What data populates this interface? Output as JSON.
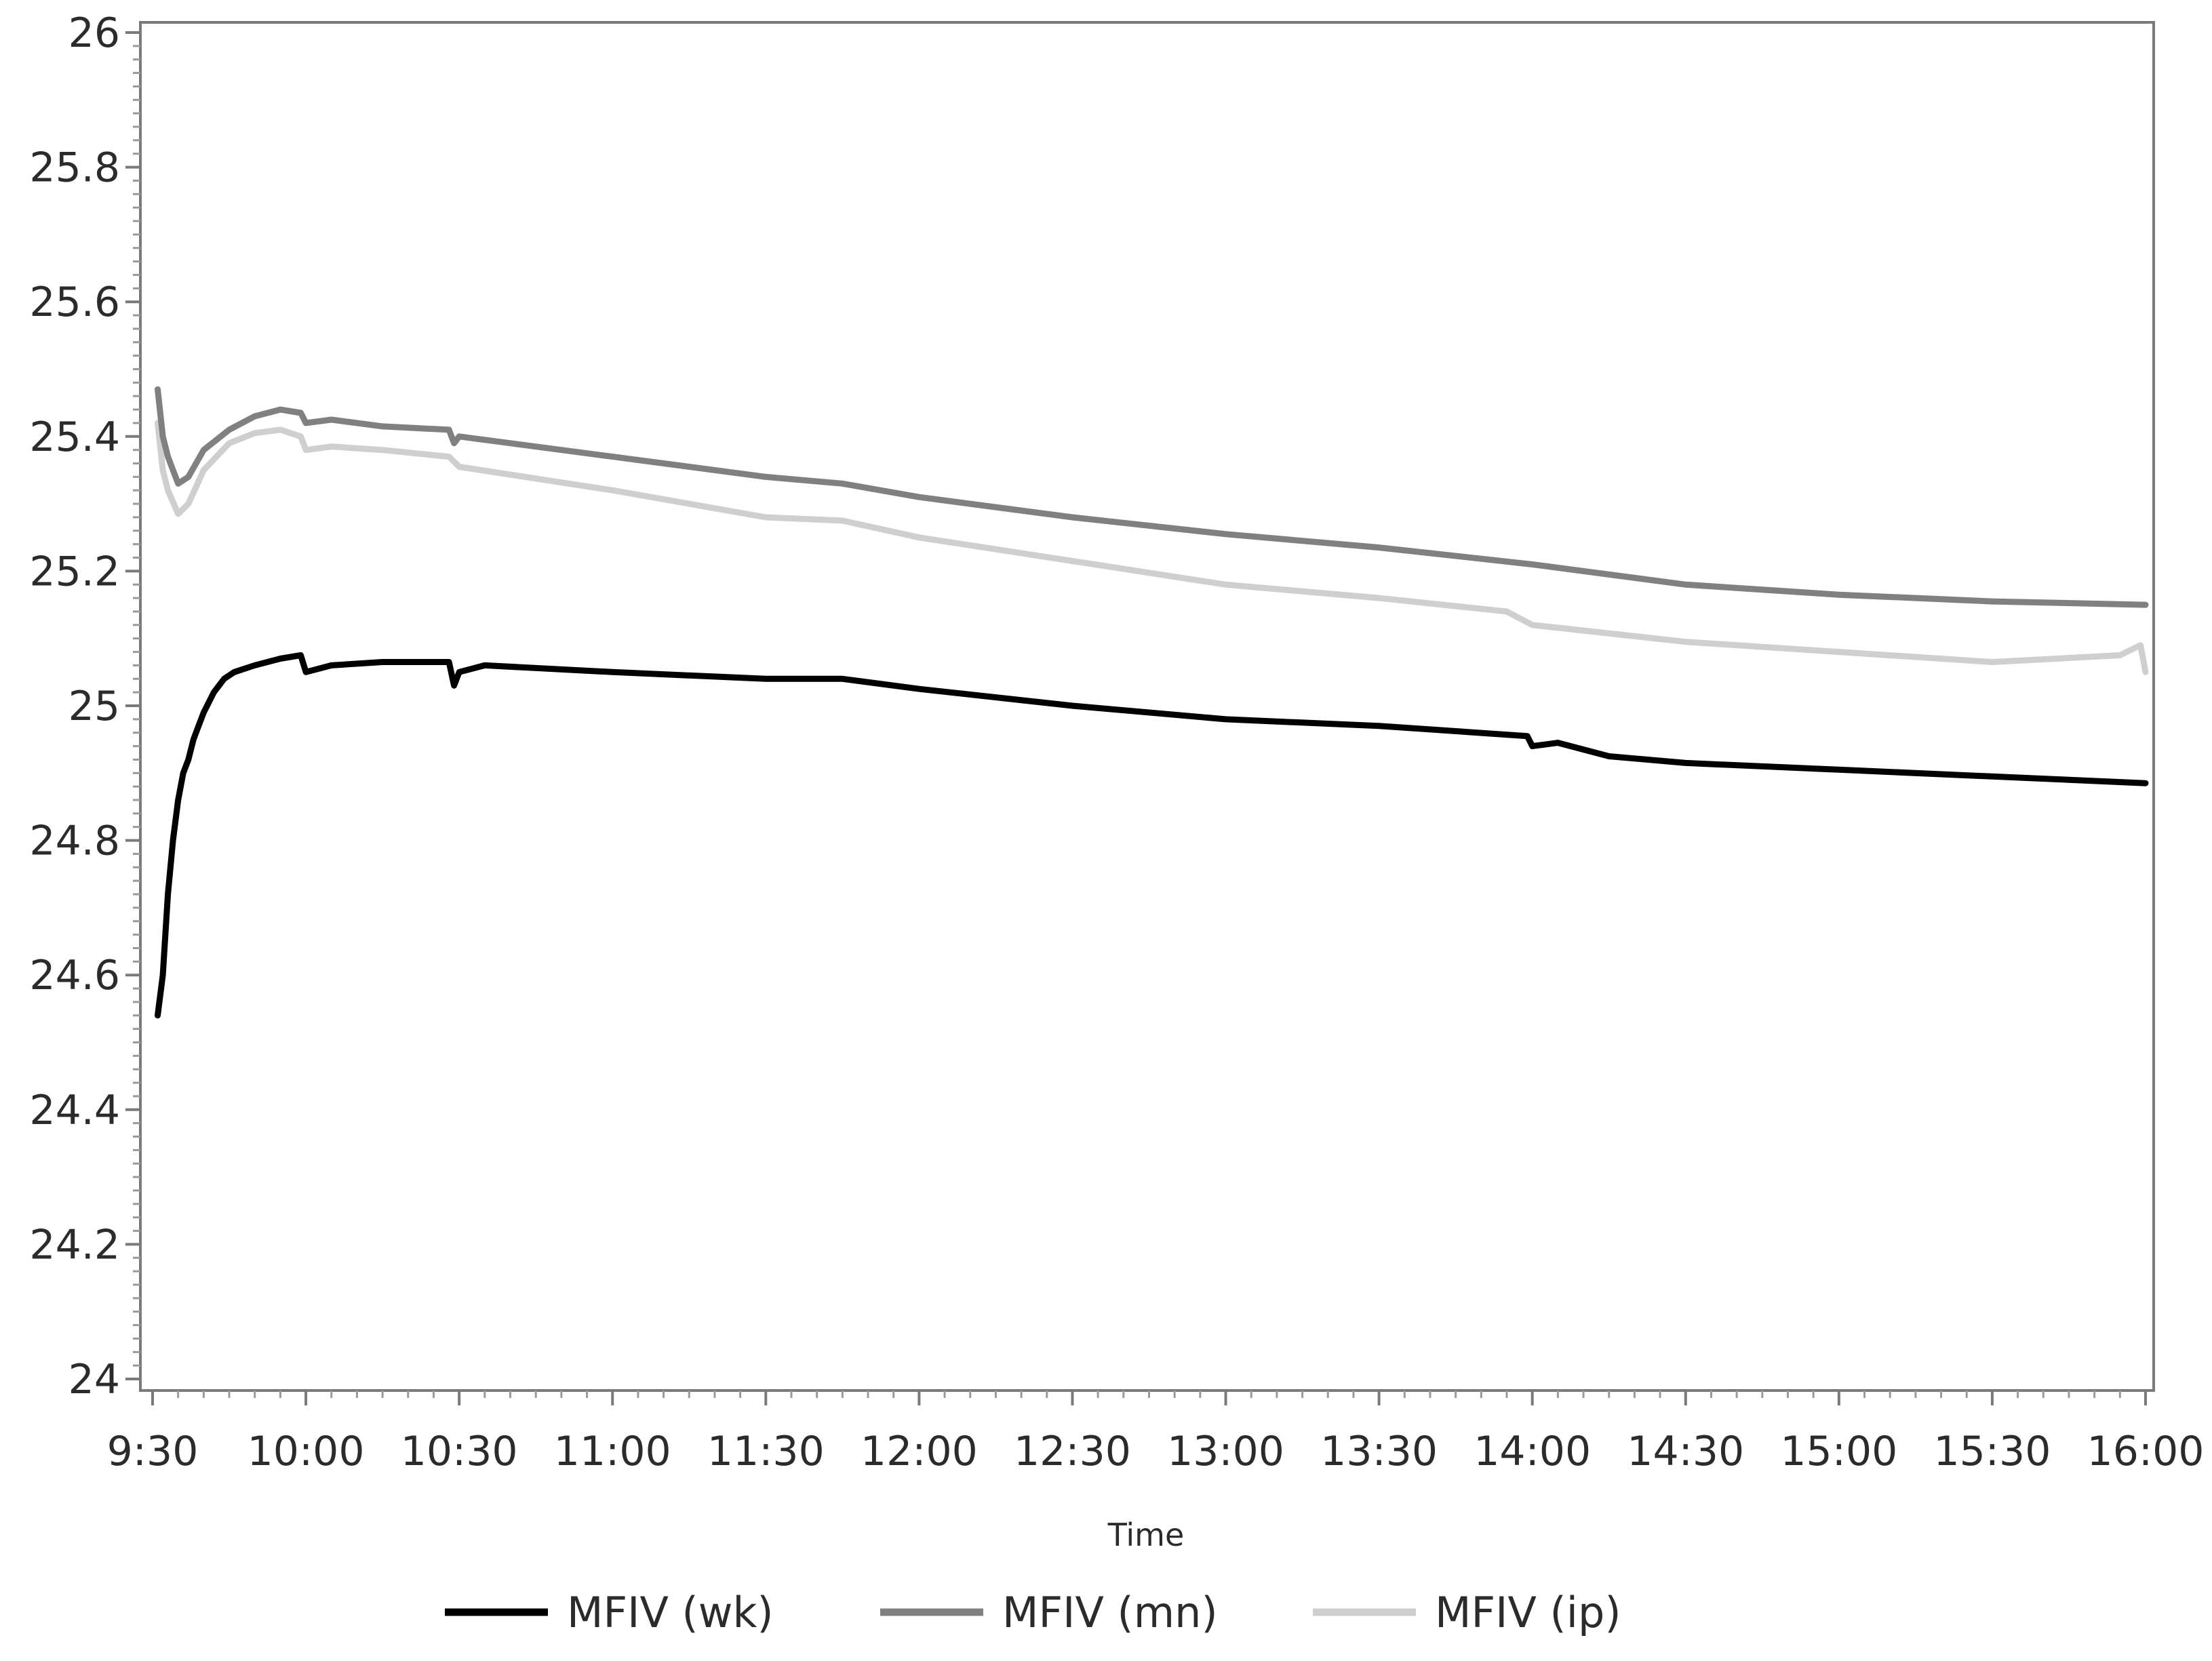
{
  "chart_data": {
    "type": "line",
    "title": "",
    "xlabel": "Time",
    "ylabel": "",
    "x_range_minutes": [
      570,
      960
    ],
    "xticks": [
      "9:30",
      "10:00",
      "10:30",
      "11:00",
      "11:30",
      "12:00",
      "12:30",
      "13:00",
      "13:30",
      "14:00",
      "14:30",
      "15:00",
      "15:30",
      "16:00"
    ],
    "ylim": [
      24,
      26
    ],
    "yticks": [
      "26",
      "25.8",
      "25.6",
      "25.4",
      "25.2",
      "25",
      "24.8",
      "24.6",
      "24.4",
      "24.2",
      "24"
    ],
    "grid": false,
    "legend_position": "bottom",
    "series": [
      {
        "name": "MFIV (wk)",
        "color": "#000000",
        "points": [
          [
            "9:31",
            24.54
          ],
          [
            "9:32",
            24.6
          ],
          [
            "9:33",
            24.72
          ],
          [
            "9:34",
            24.8
          ],
          [
            "9:35",
            24.86
          ],
          [
            "9:36",
            24.9
          ],
          [
            "9:37",
            24.92
          ],
          [
            "9:38",
            24.95
          ],
          [
            "9:39",
            24.97
          ],
          [
            "9:40",
            24.99
          ],
          [
            "9:42",
            25.02
          ],
          [
            "9:44",
            25.04
          ],
          [
            "9:46",
            25.05
          ],
          [
            "9:50",
            25.06
          ],
          [
            "9:55",
            25.07
          ],
          [
            "9:59",
            25.075
          ],
          [
            "10:00",
            25.05
          ],
          [
            "10:05",
            25.06
          ],
          [
            "10:15",
            25.065
          ],
          [
            "10:28",
            25.065
          ],
          [
            "10:29",
            25.03
          ],
          [
            "10:30",
            25.05
          ],
          [
            "10:35",
            25.06
          ],
          [
            "11:00",
            25.05
          ],
          [
            "11:30",
            25.04
          ],
          [
            "11:45",
            25.04
          ],
          [
            "12:00",
            25.025
          ],
          [
            "12:30",
            25.0
          ],
          [
            "13:00",
            24.98
          ],
          [
            "13:30",
            24.97
          ],
          [
            "13:59",
            24.955
          ],
          [
            "14:00",
            24.94
          ],
          [
            "14:05",
            24.945
          ],
          [
            "14:15",
            24.925
          ],
          [
            "14:30",
            24.915
          ],
          [
            "15:00",
            24.905
          ],
          [
            "15:30",
            24.895
          ],
          [
            "16:00",
            24.885
          ]
        ]
      },
      {
        "name": "MFIV (mn)",
        "color": "#808080",
        "points": [
          [
            "9:31",
            25.47
          ],
          [
            "9:32",
            25.4
          ],
          [
            "9:33",
            25.37
          ],
          [
            "9:35",
            25.33
          ],
          [
            "9:37",
            25.34
          ],
          [
            "9:40",
            25.38
          ],
          [
            "9:45",
            25.41
          ],
          [
            "9:50",
            25.43
          ],
          [
            "9:55",
            25.44
          ],
          [
            "9:59",
            25.435
          ],
          [
            "10:00",
            25.42
          ],
          [
            "10:05",
            25.425
          ],
          [
            "10:15",
            25.415
          ],
          [
            "10:28",
            25.41
          ],
          [
            "10:29",
            25.39
          ],
          [
            "10:30",
            25.4
          ],
          [
            "11:00",
            25.37
          ],
          [
            "11:30",
            25.34
          ],
          [
            "11:45",
            25.33
          ],
          [
            "12:00",
            25.31
          ],
          [
            "12:30",
            25.28
          ],
          [
            "13:00",
            25.255
          ],
          [
            "13:30",
            25.235
          ],
          [
            "14:00",
            25.21
          ],
          [
            "14:30",
            25.18
          ],
          [
            "15:00",
            25.165
          ],
          [
            "15:30",
            25.155
          ],
          [
            "16:00",
            25.15
          ]
        ]
      },
      {
        "name": "MFIV (ip)",
        "color": "#cfcfcf",
        "points": [
          [
            "9:31",
            25.42
          ],
          [
            "9:32",
            25.35
          ],
          [
            "9:33",
            25.32
          ],
          [
            "9:35",
            25.285
          ],
          [
            "9:37",
            25.3
          ],
          [
            "9:40",
            25.35
          ],
          [
            "9:45",
            25.39
          ],
          [
            "9:50",
            25.405
          ],
          [
            "9:55",
            25.41
          ],
          [
            "9:59",
            25.4
          ],
          [
            "10:00",
            25.38
          ],
          [
            "10:05",
            25.385
          ],
          [
            "10:15",
            25.38
          ],
          [
            "10:28",
            25.37
          ],
          [
            "10:30",
            25.355
          ],
          [
            "11:00",
            25.32
          ],
          [
            "11:30",
            25.28
          ],
          [
            "11:45",
            25.275
          ],
          [
            "12:00",
            25.25
          ],
          [
            "12:30",
            25.215
          ],
          [
            "13:00",
            25.18
          ],
          [
            "13:30",
            25.16
          ],
          [
            "13:55",
            25.14
          ],
          [
            "14:00",
            25.12
          ],
          [
            "14:30",
            25.095
          ],
          [
            "15:00",
            25.08
          ],
          [
            "15:30",
            25.065
          ],
          [
            "15:55",
            25.075
          ],
          [
            "15:59",
            25.09
          ],
          [
            "16:00",
            25.05
          ]
        ]
      }
    ]
  }
}
